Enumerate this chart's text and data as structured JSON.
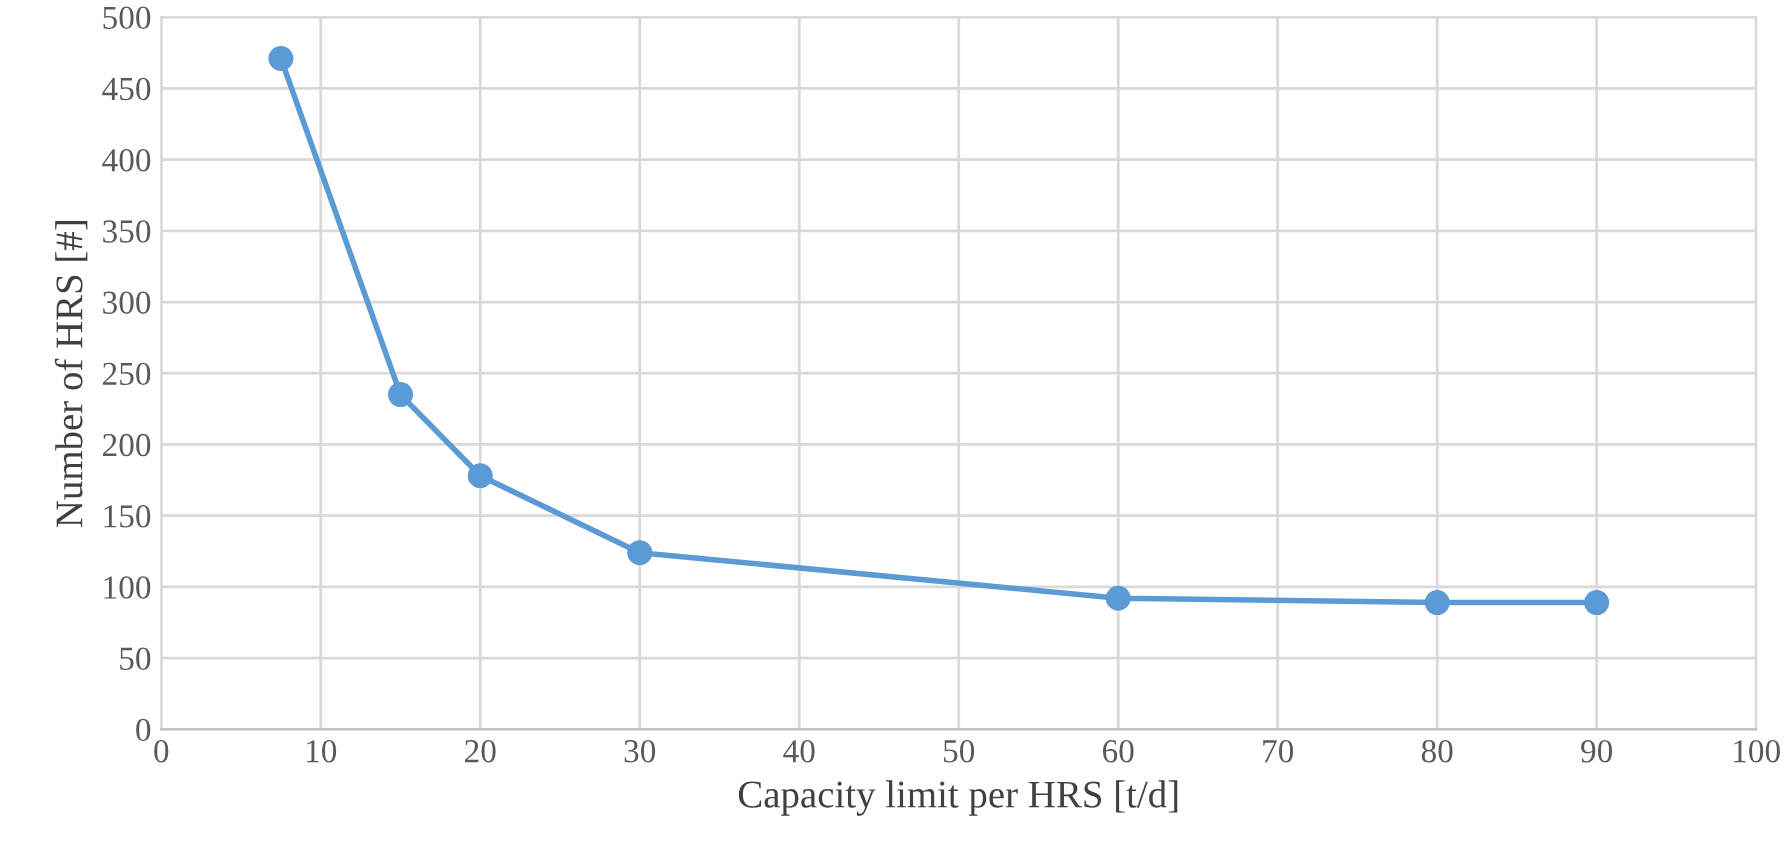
{
  "chart_data": {
    "type": "line",
    "xlabel": "Capacity limit per HRS [t/d]",
    "ylabel": "Number of HRS [#]",
    "x": [
      7.5,
      15,
      20,
      30,
      60,
      80,
      90
    ],
    "series": [
      {
        "color": "#5b9bd5",
        "values": [
          471,
          235,
          178,
          124,
          92,
          89,
          89
        ]
      }
    ],
    "xlim": [
      0,
      100
    ],
    "xticks": [
      0,
      10,
      20,
      30,
      40,
      50,
      60,
      70,
      80,
      90,
      100
    ],
    "ylim": [
      0,
      500
    ],
    "yticks": [
      0,
      50,
      100,
      150,
      200,
      250,
      300,
      350,
      400,
      450,
      500
    ],
    "grid": true,
    "marker": "circle",
    "line_style": "solid"
  }
}
